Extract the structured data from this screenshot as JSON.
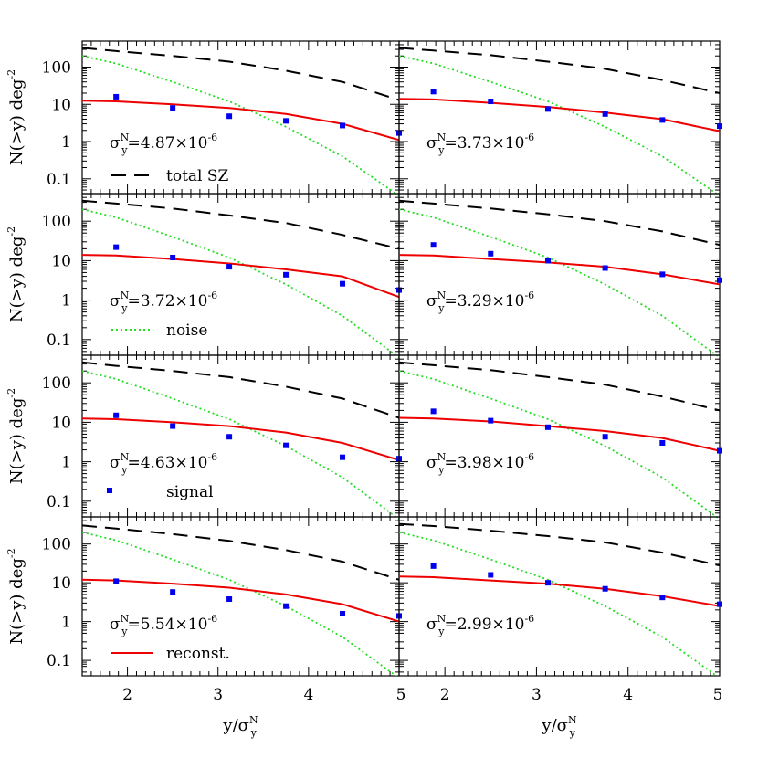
{
  "chart_data": {
    "type": "line",
    "layout": "4 rows x 2 columns of panels, shared axes",
    "ylabel": "N(>y) deg",
    "ylabel_sup": "-2",
    "xlabel": "y/σ",
    "xlabel_sub": "y",
    "xlabel_sup": "N",
    "xlim": [
      1.5,
      5
    ],
    "ylim": [
      0.04,
      500
    ],
    "yscale": "log",
    "x_ticks": [
      2,
      3,
      4,
      5
    ],
    "y_ticks": [
      {
        "value": 0.1,
        "label": "0.1"
      },
      {
        "value": 1,
        "label": "1"
      },
      {
        "value": 10,
        "label": "10"
      },
      {
        "value": 100,
        "label": "100"
      }
    ],
    "sigma_prefix": "σ",
    "sigma_sub": "y",
    "sigma_sup": "N",
    "x_points": [
      1.5,
      1.875,
      2.5,
      3.125,
      3.75,
      4.375,
      5
    ],
    "legend_items": [
      {
        "panel": 0,
        "label": "total SZ",
        "style": "total"
      },
      {
        "panel": 2,
        "label": "noise",
        "style": "noise"
      },
      {
        "panel": 4,
        "label": "signal",
        "style": "signal"
      },
      {
        "panel": 6,
        "label": "reconst.",
        "style": "reconst"
      }
    ],
    "styles": {
      "total": {
        "color": "#000000",
        "dash": "16,9"
      },
      "noise": {
        "color": "#22dd22",
        "dash": "2,3"
      },
      "signal": {
        "color": "#0000ee"
      },
      "reconst": {
        "color": "#ee0000"
      }
    },
    "panels": [
      {
        "sigma_text": "=4.87×10",
        "sigma_exp": "-6",
        "total": [
          330,
          270,
          200,
          140,
          80,
          40,
          13
        ],
        "noise": [
          200,
          125,
          40,
          12,
          2.5,
          0.4,
          0.035
        ],
        "signal_x": [
          1.875,
          2.5,
          3.125,
          3.75,
          4.375,
          5
        ],
        "signal_y": [
          16,
          8,
          4.8,
          3.6,
          2.7,
          1.7
        ],
        "reconst": [
          12.5,
          12,
          10,
          8,
          5.5,
          3,
          1.1
        ]
      },
      {
        "sigma_text": "=3.73×10",
        "sigma_exp": "-6",
        "total": [
          330,
          280,
          210,
          140,
          90,
          45,
          20
        ],
        "noise": [
          200,
          125,
          40,
          12,
          2.5,
          0.4,
          0.035
        ],
        "signal_x": [
          1.875,
          2.5,
          3.125,
          3.75,
          4.375,
          5
        ],
        "signal_y": [
          22,
          12,
          7.5,
          5.5,
          3.8,
          2.6
        ],
        "reconst": [
          14,
          13.5,
          11,
          8.5,
          6,
          4,
          1.9
        ]
      },
      {
        "sigma_text": "=3.72×10",
        "sigma_exp": "-6",
        "total": [
          330,
          280,
          210,
          140,
          90,
          45,
          20
        ],
        "noise": [
          200,
          125,
          40,
          12,
          2.5,
          0.4,
          0.035
        ],
        "signal_x": [
          1.875,
          2.5,
          3.125,
          3.75,
          4.375,
          5
        ],
        "signal_y": [
          22,
          12,
          7,
          4.4,
          2.6,
          1.8
        ],
        "reconst": [
          14,
          13.5,
          11,
          8.5,
          6,
          4,
          1.2
        ]
      },
      {
        "sigma_text": "=3.29×10",
        "sigma_exp": "-6",
        "total": [
          330,
          280,
          210,
          150,
          100,
          55,
          25
        ],
        "noise": [
          200,
          125,
          40,
          12,
          2.5,
          0.4,
          0.035
        ],
        "signal_x": [
          1.875,
          2.5,
          3.125,
          3.75,
          4.375,
          5
        ],
        "signal_y": [
          25,
          15,
          10,
          6.5,
          4.5,
          3.2
        ],
        "reconst": [
          14,
          13.5,
          11,
          9,
          7,
          4.5,
          2.5
        ]
      },
      {
        "sigma_text": "=4.63×10",
        "sigma_exp": "-6",
        "total": [
          330,
          270,
          200,
          140,
          80,
          40,
          13
        ],
        "noise": [
          200,
          125,
          40,
          12,
          2.5,
          0.4,
          0.035
        ],
        "signal_x": [
          1.875,
          2.5,
          3.125,
          3.75,
          4.375,
          5
        ],
        "signal_y": [
          15,
          8,
          4.3,
          2.6,
          1.3,
          1.2
        ],
        "reconst": [
          12.5,
          12,
          10,
          8,
          5.5,
          3,
          1.1
        ]
      },
      {
        "sigma_text": "=3.98×10",
        "sigma_exp": "-6",
        "total": [
          330,
          280,
          210,
          140,
          90,
          45,
          20
        ],
        "noise": [
          200,
          125,
          40,
          12,
          2.5,
          0.4,
          0.035
        ],
        "signal_x": [
          1.875,
          2.5,
          3.125,
          3.75,
          4.375,
          5
        ],
        "signal_y": [
          19,
          11,
          7.5,
          4.3,
          3,
          1.9
        ],
        "reconst": [
          13,
          12.5,
          10.5,
          8,
          6,
          4,
          1.9
        ]
      },
      {
        "sigma_text": "=5.54×10",
        "sigma_exp": "-6",
        "total": [
          300,
          250,
          180,
          120,
          70,
          35,
          12
        ],
        "noise": [
          200,
          125,
          40,
          12,
          2.5,
          0.4,
          0.035
        ],
        "signal_x": [
          1.875,
          2.5,
          3.125,
          3.75,
          4.375,
          5
        ],
        "signal_y": [
          11,
          5.8,
          3.8,
          2.5,
          1.6,
          1.4
        ],
        "reconst": [
          12,
          11.5,
          9.5,
          7.5,
          5,
          2.8,
          1.0
        ]
      },
      {
        "sigma_text": "=2.99×10",
        "sigma_exp": "-6",
        "total": [
          330,
          290,
          220,
          160,
          110,
          60,
          28
        ],
        "noise": [
          200,
          125,
          40,
          12,
          2.5,
          0.4,
          0.035
        ],
        "signal_x": [
          1.875,
          2.5,
          3.125,
          3.75,
          4.375,
          5
        ],
        "signal_y": [
          27,
          16,
          10,
          7,
          4.2,
          2.8
        ],
        "reconst": [
          14.5,
          14,
          11.5,
          9.5,
          7,
          4.5,
          2.5
        ]
      }
    ]
  }
}
